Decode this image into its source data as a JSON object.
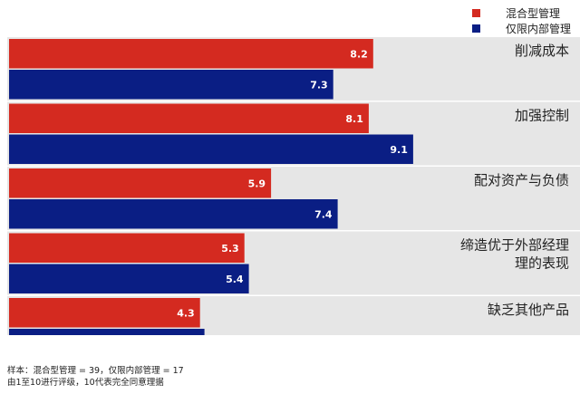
{
  "chart_data": {
    "type": "bar",
    "orientation": "horizontal",
    "categories": [
      "削减成本",
      "加强控制",
      "配对资产与负债",
      "缔造优于外部经理的表现",
      "缺乏其他产品"
    ],
    "category_lines": [
      [
        "削减成本"
      ],
      [
        "加强控制"
      ],
      [
        "配对资产与负债"
      ],
      [
        "缔造优于外部经理",
        "理的表现"
      ],
      [
        "缺乏其他产品"
      ]
    ],
    "series": [
      {
        "name": "混合型管理",
        "color": "#d42a20",
        "values": [
          8.2,
          8.1,
          5.9,
          5.3,
          4.3
        ]
      },
      {
        "name": "仅限内部管理",
        "color": "#0a1e84",
        "values": [
          7.3,
          9.1,
          7.4,
          5.4,
          4.4
        ]
      }
    ],
    "xlim": [
      0,
      10
    ],
    "grid": false,
    "legend_position": "top-right",
    "data_label_color": "#ffffff",
    "band_color": "#e6e6e6"
  },
  "footnote": {
    "line1": "样本：混合型管理 = 39，仅限内部管理 = 17",
    "line2": "由1至10进行评级，10代表完全同意理据"
  }
}
